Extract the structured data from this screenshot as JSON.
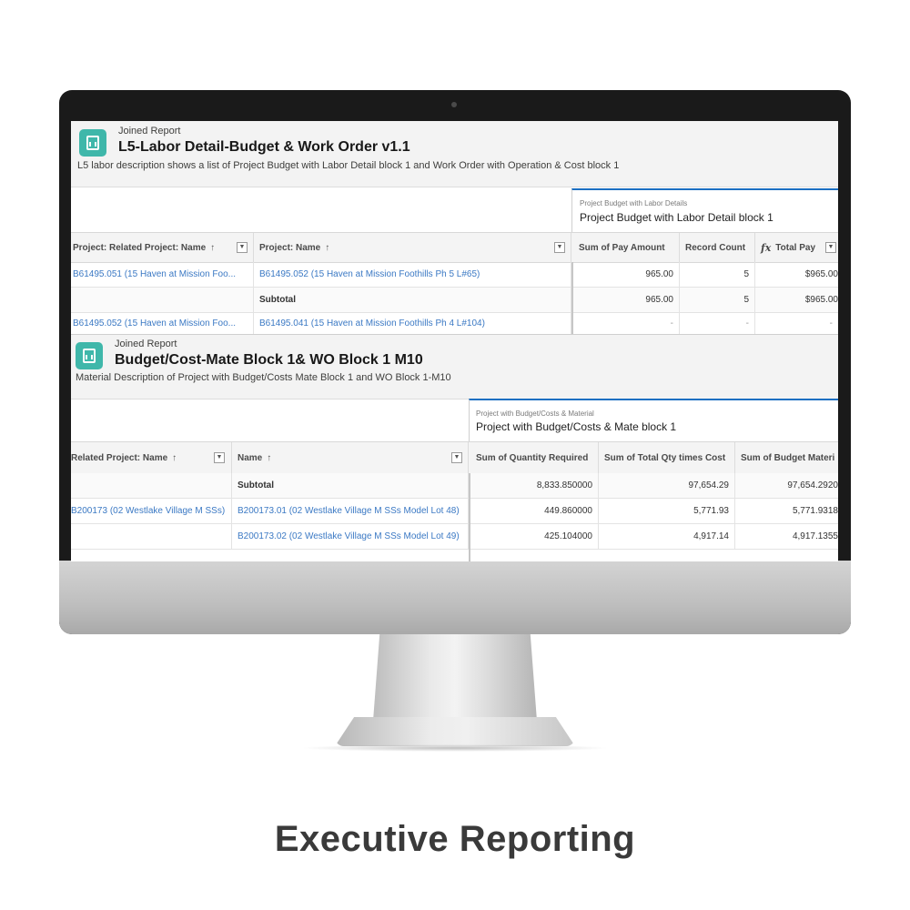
{
  "caption": "Executive Reporting",
  "report1": {
    "kind": "Joined Report",
    "title": "L5-Labor Detail-Budget & Work Order v1.1",
    "description": "L5 labor description shows a list of Project Budget with Labor Detail block 1 and Work Order with Operation & Cost block 1",
    "group_small": "Project Budget with Labor Details",
    "group_big": "Project Budget with Labor Detail block 1",
    "headers": [
      "Project: Related Project: Name",
      "Project: Name",
      "Sum of Pay Amount",
      "Record Count",
      "Total Pay"
    ],
    "sort_arrow": "↑",
    "fx_label": "fx",
    "dropdown": "▼",
    "rows": [
      {
        "col1": "B61495.051 (15 Haven at Mission Foo...",
        "col2": "B61495.052 (15 Haven at Mission Foothills Ph 5 L#65)",
        "pay": "965.00",
        "count": "5",
        "total": "$965.00"
      },
      {
        "col1": "",
        "col2": "Subtotal",
        "pay": "965.00",
        "count": "5",
        "total": "$965.00"
      },
      {
        "col1": "B61495.052 (15 Haven at Mission Foo...",
        "col2": "B61495.041 (15 Haven at Mission Foothills Ph 4 L#104)",
        "pay": "-",
        "count": "-",
        "total": "-"
      }
    ]
  },
  "report2": {
    "kind": "Joined Report",
    "title": "Budget/Cost-Mate Block 1& WO Block 1 M10",
    "description": "Material Description of Project with Budget/Costs Mate Block 1 and WO Block 1-M10",
    "group_small": "Project with Budget/Costs & Material",
    "group_big": "Project with Budget/Costs & Mate block 1",
    "headers": [
      "Related Project: Name",
      "Name",
      "Sum of Quantity Required",
      "Sum of Total Qty times Cost",
      "Sum of Budget Materi"
    ],
    "sort_arrow": "↑",
    "dropdown": "▼",
    "rows": [
      {
        "col1": "",
        "col2": "Subtotal",
        "qty": "8,833.850000",
        "cost": "97,654.29",
        "budget": "97,654.2920"
      },
      {
        "col1": "B200173 (02 Westlake Village M SSs)",
        "col2": "B200173.01 (02 Westlake Village M SSs Model Lot 48)",
        "qty": "449.860000",
        "cost": "5,771.93",
        "budget": "5,771.9318"
      },
      {
        "col1": "",
        "col2": "B200173.02 (02 Westlake Village M SSs Model Lot 49)",
        "qty": "425.104000",
        "cost": "4,917.14",
        "budget": "4,917.1355"
      }
    ]
  }
}
